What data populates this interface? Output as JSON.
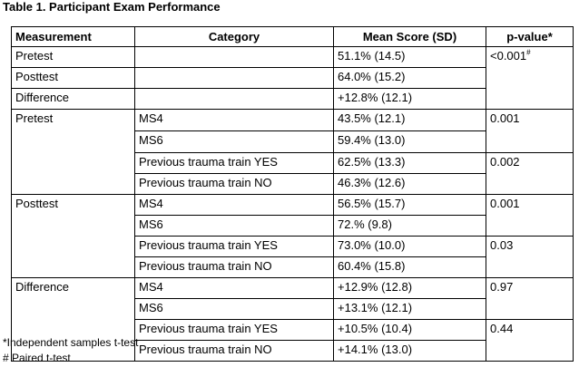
{
  "title": "Table 1. Participant Exam Performance",
  "headers": {
    "measurement": "Measurement",
    "category": "Category",
    "mean": "Mean Score (SD)",
    "pvalue": "p-value*"
  },
  "rows": {
    "pretest_overall": {
      "measurement": "Pretest",
      "mean": "51.1% (14.5)"
    },
    "posttest_overall": {
      "measurement": "Posttest",
      "mean": "64.0% (15.2)"
    },
    "difference_overall": {
      "measurement": "Difference",
      "mean": "+12.8% (12.1)"
    },
    "overall_p": {
      "value": "<0.001",
      "mark": "#"
    },
    "pretest": {
      "measurement": "Pretest",
      "ms4": {
        "category": "MS4",
        "mean": "43.5% (12.1)"
      },
      "ms6": {
        "category": "MS6",
        "mean": "59.4% (13.0)"
      },
      "yes": {
        "category": "Previous trauma train YES",
        "mean": "62.5% (13.3)"
      },
      "no": {
        "category": "Previous trauma train NO",
        "mean": "46.3% (12.6)"
      },
      "p_ms": "0.001",
      "p_train": "0.002"
    },
    "posttest": {
      "measurement": "Posttest",
      "ms4": {
        "category": "MS4",
        "mean": "56.5% (15.7)"
      },
      "ms6": {
        "category": "MS6",
        "mean": "72.% (9.8)"
      },
      "yes": {
        "category": "Previous trauma train YES",
        "mean": "73.0% (10.0)"
      },
      "no": {
        "category": "Previous trauma train NO",
        "mean": "60.4% (15.8)"
      },
      "p_ms": "0.001",
      "p_train": "0.03"
    },
    "difference": {
      "measurement": "Difference",
      "ms4": {
        "category": "MS4",
        "mean": "+12.9% (12.8)"
      },
      "ms6": {
        "category": "MS6",
        "mean": "+13.1% (12.1)"
      },
      "yes": {
        "category": "Previous trauma train YES",
        "mean": "+10.5% (10.4)"
      },
      "no": {
        "category": "Previous trauma train NO",
        "mean": "+14.1% (13.0)"
      },
      "p_ms": "0.97",
      "p_train": "0.44"
    }
  },
  "footnotes": {
    "independent": "*Independent samples t-test",
    "paired": "# Paired t-test"
  }
}
